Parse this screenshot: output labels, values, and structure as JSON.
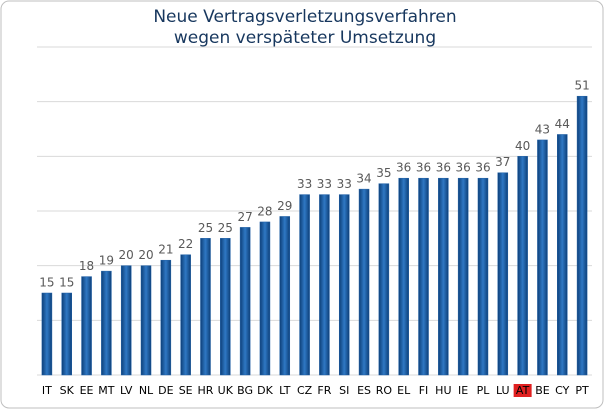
{
  "chart_data": {
    "type": "bar",
    "title": [
      "Neue Vertragsverletzungsverfahren",
      "wegen verspäteter Umsetzung"
    ],
    "categories": [
      "IT",
      "SK",
      "EE",
      "MT",
      "LV",
      "NL",
      "DE",
      "SE",
      "HR",
      "UK",
      "BG",
      "DK",
      "LT",
      "CZ",
      "FR",
      "SI",
      "ES",
      "RO",
      "EL",
      "FI",
      "HU",
      "IE",
      "PL",
      "LU",
      "AT",
      "BE",
      "CY",
      "PT"
    ],
    "values": [
      15,
      15,
      18,
      19,
      20,
      20,
      21,
      22,
      25,
      25,
      27,
      28,
      29,
      33,
      33,
      33,
      34,
      35,
      36,
      36,
      36,
      36,
      36,
      37,
      40,
      43,
      44,
      51
    ],
    "color": "#1f5fa5",
    "highlight_categories": [
      "AT"
    ],
    "highlight_color": "#e02020",
    "ylim": [
      0,
      60
    ],
    "yticks": [
      0,
      10,
      20,
      30,
      40,
      50,
      60
    ],
    "grid": true
  }
}
